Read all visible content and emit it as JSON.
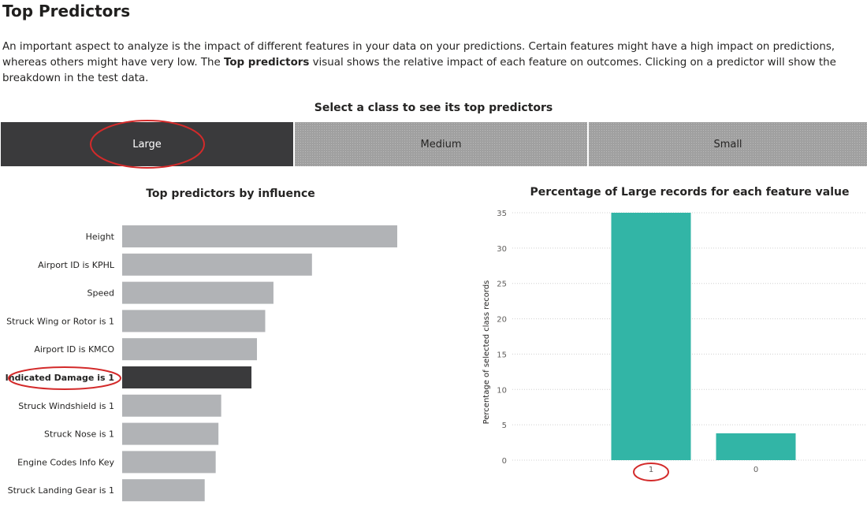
{
  "page": {
    "title": "Top Predictors",
    "intro_part1": "An important aspect to analyze is the impact of different features in your data on your predictions. Certain features might have a high impact on predictions, whereas others might have very low. The ",
    "intro_bold": "Top predictors",
    "intro_part2": " visual shows the relative impact of each feature on outcomes. Clicking on a predictor will show the breakdown in the test data."
  },
  "class_selector": {
    "heading": "Select a class to see its top predictors",
    "options": [
      "Large",
      "Medium",
      "Small"
    ],
    "selected": "Large"
  },
  "colors": {
    "selected_dark": "#3a3a3c",
    "bar_gray": "#b1b3b6",
    "teal": "#32b5a6",
    "annotation_red": "#d32a2a"
  },
  "chart_data": [
    {
      "type": "bar",
      "orientation": "horizontal",
      "title": "Top predictors by influence",
      "categories": [
        "Height",
        "Airport ID is KPHL",
        "Speed",
        "Struck Wing or Rotor is 1",
        "Airport ID is KMCO",
        "Indicated Damage is 1",
        "Struck Windshield is 1",
        "Struck Nose is 1",
        "Engine Codes Info Key",
        "Struck Landing Gear is 1"
      ],
      "values": [
        100,
        69,
        55,
        52,
        49,
        47,
        36,
        35,
        34,
        30
      ],
      "selected": "Indicated Damage is 1",
      "xlim": [
        0,
        100
      ]
    },
    {
      "type": "bar",
      "title": "Percentage of Large records for each feature value",
      "categories": [
        "1",
        "0"
      ],
      "values": [
        35,
        3.8
      ],
      "ylabel": "Percentage of selected class records",
      "ylim": [
        0,
        35
      ],
      "yticks": [
        0,
        5,
        10,
        15,
        20,
        25,
        30,
        35
      ],
      "grid": true
    }
  ]
}
